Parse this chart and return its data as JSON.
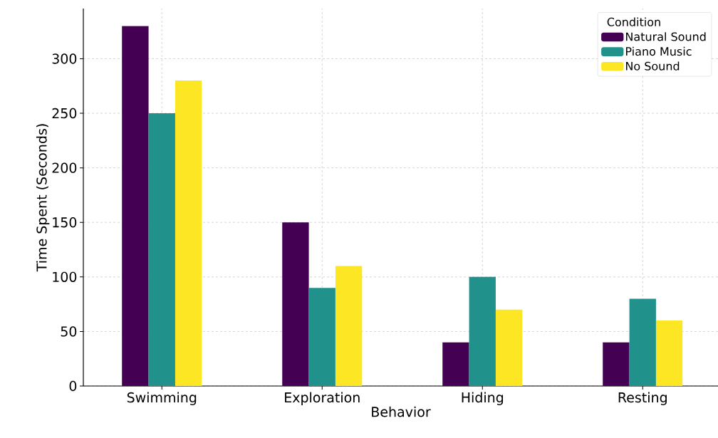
{
  "chart_data": {
    "type": "bar",
    "xlabel": "Behavior",
    "ylabel": "Time Spent (Seconds)",
    "legend_title": "Condition",
    "categories": [
      "Swimming",
      "Exploration",
      "Hiding",
      "Resting"
    ],
    "series": [
      {
        "name": "Natural Sound",
        "color": "#440154",
        "values": [
          330,
          150,
          40,
          40
        ]
      },
      {
        "name": "Piano Music",
        "color": "#21918c",
        "values": [
          250,
          90,
          100,
          80
        ]
      },
      {
        "name": "No Sound",
        "color": "#fde725",
        "values": [
          280,
          110,
          70,
          60
        ]
      }
    ],
    "ylim": [
      0,
      346
    ],
    "yticks": [
      0,
      50,
      100,
      150,
      200,
      250,
      300
    ],
    "grid": true,
    "legend": "top right"
  }
}
